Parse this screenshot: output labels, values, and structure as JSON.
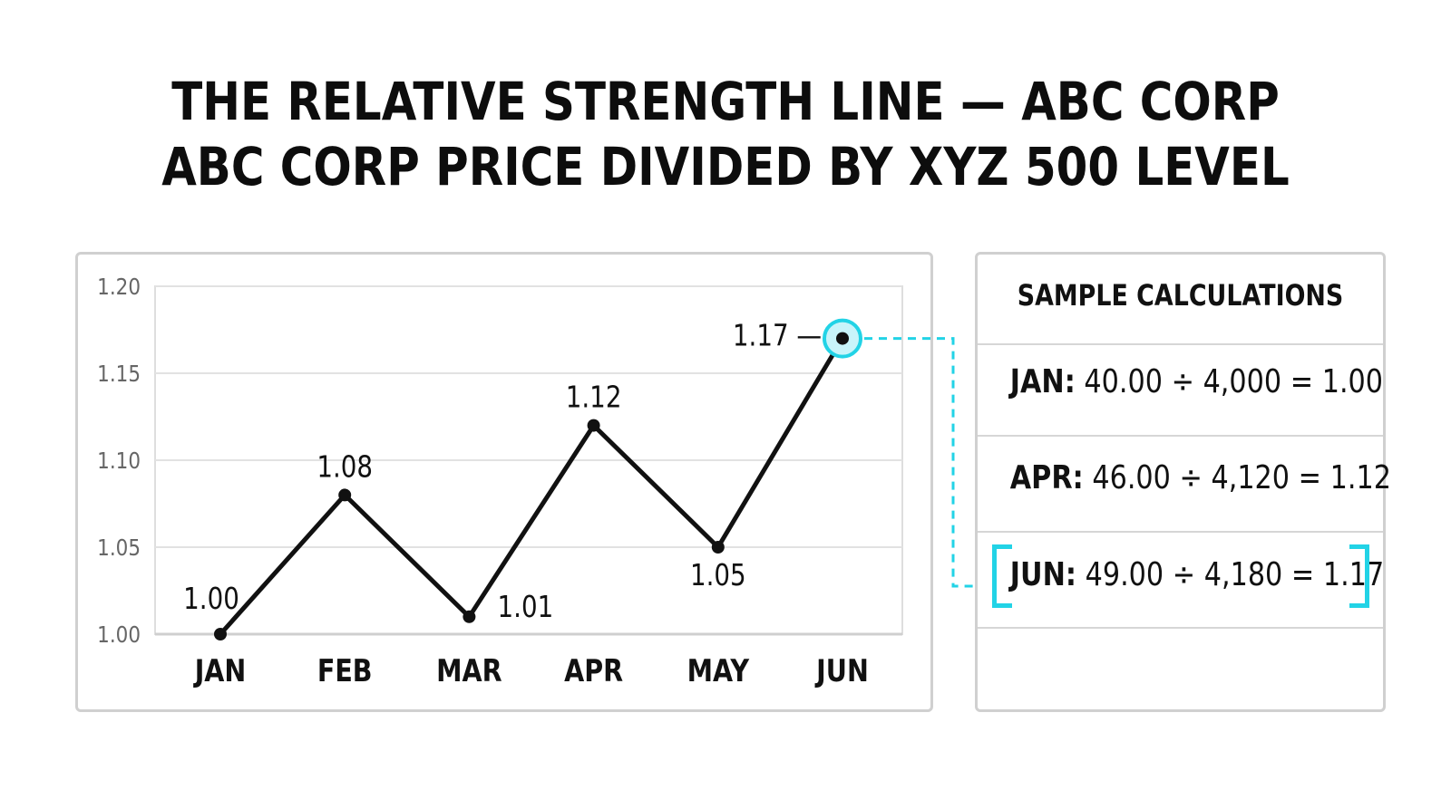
{
  "title_lines": [
    "THE RELATIVE STRENGTH LINE — ABC CORP",
    "ABC CORP PRICE DIVIDED BY XYZ 500 LEVEL"
  ],
  "chart_data": {
    "type": "line",
    "categories": [
      "JAN",
      "FEB",
      "MAR",
      "APR",
      "MAY",
      "JUN"
    ],
    "values": [
      1.0,
      1.08,
      1.01,
      1.12,
      1.05,
      1.17
    ],
    "data_labels": [
      "1.00",
      "1.08",
      "1.01",
      "1.12",
      "1.05",
      "1.17 —"
    ],
    "yticks": [
      "1.00",
      "1.05",
      "1.10",
      "1.15",
      "1.20"
    ],
    "ytick_values": [
      1.0,
      1.05,
      1.1,
      1.15,
      1.2
    ],
    "ylim": [
      1.0,
      1.2
    ],
    "grid": true,
    "highlight_index": 5,
    "line_color": "#111111",
    "highlight_color": "#22d3e6"
  },
  "calculations": {
    "title": "SAMPLE CALCULATIONS",
    "rows": [
      {
        "month": "JAN:",
        "formula": "40.00 ÷ 4,000 = 1.00"
      },
      {
        "month": "APR:",
        "formula": "46.00 ÷ 4,120 = 1.12"
      },
      {
        "month": "JUN:",
        "formula": "49.00 ÷ 4,180 = 1.17"
      }
    ]
  }
}
